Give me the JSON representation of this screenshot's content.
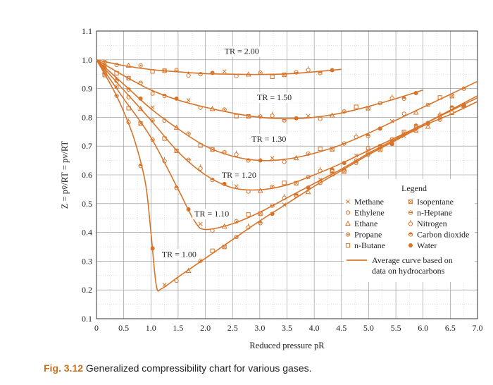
{
  "figure_label": "Fig. 3.12",
  "caption": "Generalized compressibility chart for various gases.",
  "colors": {
    "accent": "#d8742a",
    "marker": "#d8742a",
    "text": "#222222",
    "axis": "#333333"
  },
  "chart_data": {
    "type": "line",
    "xlabel": "Reduced pressure pR",
    "ylabel": "Z = pv̄/RT = pv/RT",
    "xlim": [
      0,
      7.0
    ],
    "ylim": [
      0.1,
      1.1
    ],
    "xticks": [
      "0",
      "0.5",
      "1.0",
      "1.5",
      "2.0",
      "2.5",
      "3.0",
      "3.5",
      "4.0",
      "4.5",
      "5.0",
      "5.5",
      "6.0",
      "6.5",
      "7.0"
    ],
    "yticks": [
      "0.1",
      "0.2",
      "0.3",
      "0.4",
      "0.5",
      "0.6",
      "0.7",
      "0.8",
      "0.9",
      "1.0",
      "1.1"
    ],
    "grid": true,
    "legend_title": "Legend",
    "legend_position": "bottom-right",
    "legend": [
      {
        "marker": "x",
        "label": "Methane"
      },
      {
        "marker": "circle-open",
        "label": "Ethylene"
      },
      {
        "marker": "triangle",
        "label": "Ethane"
      },
      {
        "marker": "circle-dot",
        "label": "Propane"
      },
      {
        "marker": "square",
        "label": "n-Butane"
      },
      {
        "marker": "square-x",
        "label": "Isopentane"
      },
      {
        "marker": "circle-bar",
        "label": "n-Heptane"
      },
      {
        "marker": "circle-tick",
        "label": "Nitrogen"
      },
      {
        "marker": "circle-half",
        "label": "Carbon dioxide"
      },
      {
        "marker": "dot",
        "label": "Water"
      }
    ],
    "average_curve_label": "Average curve based on data on hydrocarbons",
    "series": [
      {
        "name": "TR = 2.00",
        "label_at": [
          2.35,
          1.02
        ],
        "x": [
          0,
          0.5,
          1.0,
          1.5,
          2.0,
          2.5,
          3.0,
          3.5,
          4.0,
          4.5
        ],
        "y": [
          1.0,
          0.98,
          0.966,
          0.958,
          0.952,
          0.95,
          0.949,
          0.951,
          0.958,
          0.967
        ]
      },
      {
        "name": "TR = 1.50",
        "label_at": [
          2.95,
          0.86
        ],
        "x": [
          0,
          0.5,
          1.0,
          1.5,
          2.0,
          2.5,
          3.0,
          3.5,
          4.0,
          4.5,
          5.0,
          5.5,
          6.0
        ],
        "y": [
          1.0,
          0.945,
          0.895,
          0.86,
          0.835,
          0.815,
          0.8,
          0.795,
          0.8,
          0.815,
          0.838,
          0.865,
          0.895
        ]
      },
      {
        "name": "TR = 1.30",
        "label_at": [
          2.85,
          0.715
        ],
        "x": [
          0,
          0.5,
          1.0,
          1.5,
          2.0,
          2.5,
          3.0,
          3.5,
          4.0,
          4.5,
          5.0,
          5.5,
          6.0,
          6.5,
          7.0
        ],
        "y": [
          1.0,
          0.915,
          0.83,
          0.76,
          0.7,
          0.665,
          0.65,
          0.655,
          0.675,
          0.705,
          0.745,
          0.79,
          0.835,
          0.88,
          0.925
        ]
      },
      {
        "name": "TR = 1.20",
        "label_at": [
          2.3,
          0.59
        ],
        "x": [
          0,
          0.5,
          1.0,
          1.5,
          2.0,
          2.5,
          3.0,
          3.5,
          4.0,
          4.5,
          5.0,
          5.5,
          6.0,
          6.5,
          7.0
        ],
        "y": [
          1.0,
          0.895,
          0.79,
          0.68,
          0.6,
          0.555,
          0.548,
          0.565,
          0.6,
          0.64,
          0.685,
          0.73,
          0.775,
          0.822,
          0.868
        ]
      },
      {
        "name": "TR = 1.10",
        "label_at": [
          1.8,
          0.455
        ],
        "x": [
          0,
          0.5,
          1.0,
          1.5,
          1.8,
          2.0,
          2.5,
          3.0,
          3.5,
          4.0,
          4.5,
          5.0,
          5.5,
          6.0,
          6.5,
          7.0
        ],
        "y": [
          1.0,
          0.865,
          0.73,
          0.55,
          0.44,
          0.41,
          0.43,
          0.47,
          0.52,
          0.57,
          0.62,
          0.675,
          0.725,
          0.775,
          0.825,
          0.875
        ]
      },
      {
        "name": "TR = 1.00",
        "label_at": [
          1.2,
          0.315
        ],
        "x": [
          0,
          0.3,
          0.5,
          0.7,
          0.9,
          1.0,
          1.1,
          1.2,
          1.5,
          2.0,
          2.5,
          3.0,
          3.5,
          4.0,
          4.5,
          5.0,
          5.5,
          6.0,
          6.5,
          7.0
        ],
        "y": [
          1.0,
          0.9,
          0.82,
          0.72,
          0.57,
          0.4,
          0.215,
          0.205,
          0.245,
          0.31,
          0.375,
          0.44,
          0.5,
          0.56,
          0.615,
          0.67,
          0.72,
          0.77,
          0.81,
          0.855
        ]
      }
    ]
  }
}
